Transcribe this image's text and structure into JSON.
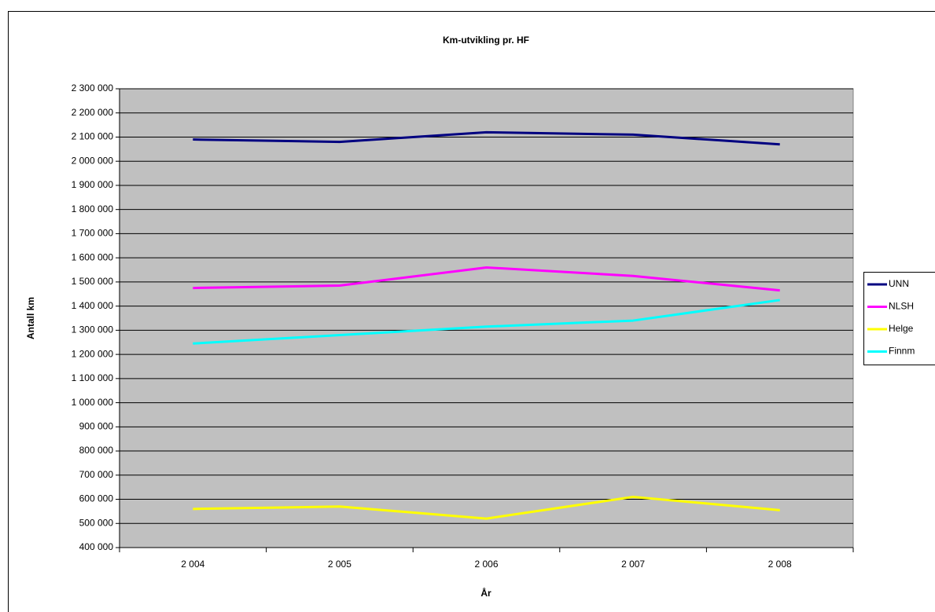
{
  "chart_data": {
    "type": "line",
    "title": "Km-utvikling pr. HF",
    "x_label": "År",
    "y_label": "Antall km",
    "categories": [
      "2 004",
      "2 005",
      "2 006",
      "2 007",
      "2 008"
    ],
    "series": [
      {
        "name": "UNN",
        "color": "#000080",
        "values": [
          2090000,
          2080000,
          2120000,
          2110000,
          2070000
        ]
      },
      {
        "name": "NLSH",
        "color": "#ff00ff",
        "values": [
          1475000,
          1485000,
          1560000,
          1525000,
          1465000
        ]
      },
      {
        "name": "Helge",
        "color": "#ffff00",
        "values": [
          560000,
          570000,
          520000,
          610000,
          555000
        ]
      },
      {
        "name": "Finnm",
        "color": "#00ffff",
        "values": [
          1245000,
          1280000,
          1315000,
          1340000,
          1425000
        ]
      }
    ],
    "ylim": [
      400000,
      2300000
    ],
    "yticks": [
      {
        "value": 400000,
        "label": "400 000"
      },
      {
        "value": 500000,
        "label": "500 000"
      },
      {
        "value": 600000,
        "label": "600 000"
      },
      {
        "value": 700000,
        "label": "700 000"
      },
      {
        "value": 800000,
        "label": "800 000"
      },
      {
        "value": 900000,
        "label": "900 000"
      },
      {
        "value": 1000000,
        "label": "1 000 000"
      },
      {
        "value": 1100000,
        "label": "1 100 000"
      },
      {
        "value": 1200000,
        "label": "1 200 000"
      },
      {
        "value": 1300000,
        "label": "1 300 000"
      },
      {
        "value": 1400000,
        "label": "1 400 000"
      },
      {
        "value": 1500000,
        "label": "1 500 000"
      },
      {
        "value": 1600000,
        "label": "1 600 000"
      },
      {
        "value": 1700000,
        "label": "1 700 000"
      },
      {
        "value": 1800000,
        "label": "1 800 000"
      },
      {
        "value": 1900000,
        "label": "1 900 000"
      },
      {
        "value": 2000000,
        "label": "2 000 000"
      },
      {
        "value": 2100000,
        "label": "2 100 000"
      },
      {
        "value": 2200000,
        "label": "2 200 000"
      },
      {
        "value": 2300000,
        "label": "2 300 000"
      }
    ],
    "grid": true,
    "legend": "right"
  }
}
